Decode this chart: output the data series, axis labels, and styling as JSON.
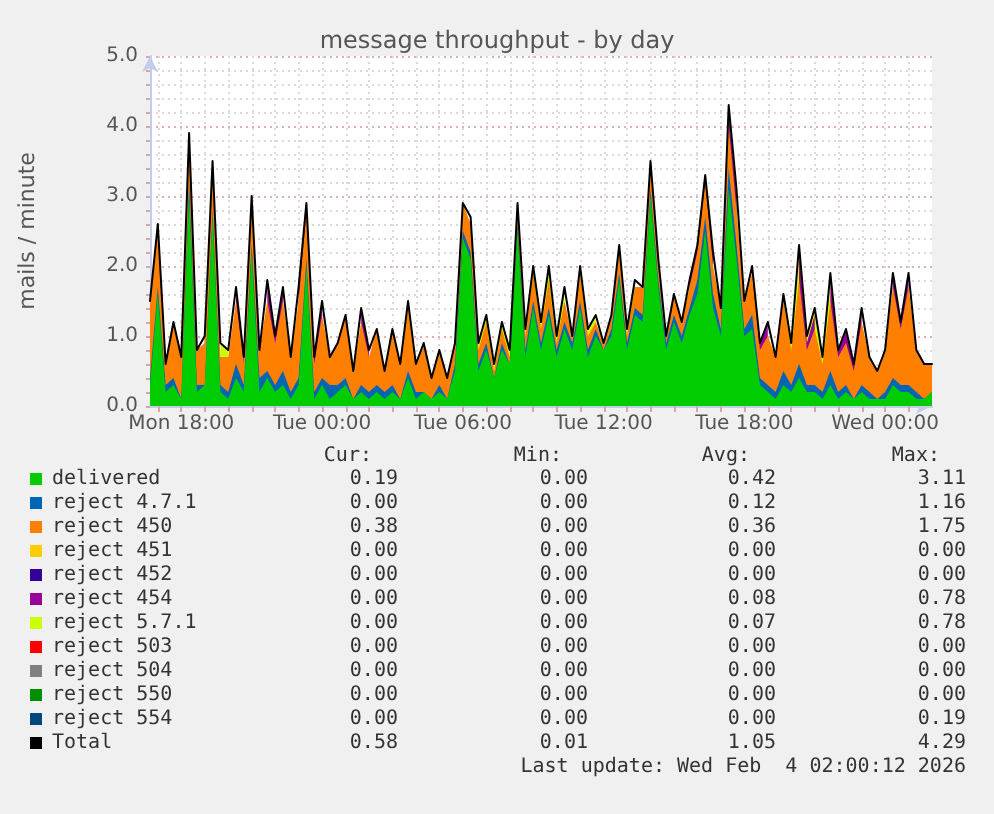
{
  "chart_data": {
    "type": "area",
    "stacked": true,
    "title": "message throughput - by day",
    "ylabel": "mails / minute",
    "x": [
      "2026-02-02T16:40",
      "2026-02-02T17:00",
      "2026-02-02T17:20",
      "2026-02-02T17:40",
      "2026-02-02T18:00",
      "2026-02-02T18:20",
      "2026-02-02T18:40",
      "2026-02-02T19:00",
      "2026-02-02T19:20",
      "2026-02-02T19:40",
      "2026-02-02T20:00",
      "2026-02-02T20:20",
      "2026-02-02T20:40",
      "2026-02-02T21:00",
      "2026-02-02T21:20",
      "2026-02-02T21:40",
      "2026-02-02T22:00",
      "2026-02-02T22:20",
      "2026-02-02T22:40",
      "2026-02-02T23:00",
      "2026-02-02T23:20",
      "2026-02-02T23:40",
      "2026-02-03T00:00",
      "2026-02-03T00:20",
      "2026-02-03T00:40",
      "2026-02-03T01:00",
      "2026-02-03T01:20",
      "2026-02-03T01:40",
      "2026-02-03T02:00",
      "2026-02-03T02:20",
      "2026-02-03T02:40",
      "2026-02-03T03:00",
      "2026-02-03T03:20",
      "2026-02-03T03:40",
      "2026-02-03T04:00",
      "2026-02-03T04:20",
      "2026-02-03T04:40",
      "2026-02-03T05:00",
      "2026-02-03T05:20",
      "2026-02-03T05:40",
      "2026-02-03T06:00",
      "2026-02-03T06:20",
      "2026-02-03T06:40",
      "2026-02-03T07:00",
      "2026-02-03T07:20",
      "2026-02-03T07:40",
      "2026-02-03T08:00",
      "2026-02-03T08:20",
      "2026-02-03T08:40",
      "2026-02-03T09:00",
      "2026-02-03T09:20",
      "2026-02-03T09:40",
      "2026-02-03T10:00",
      "2026-02-03T10:20",
      "2026-02-03T10:40",
      "2026-02-03T11:00",
      "2026-02-03T11:20",
      "2026-02-03T11:40",
      "2026-02-03T12:00",
      "2026-02-03T12:20",
      "2026-02-03T12:40",
      "2026-02-03T13:00",
      "2026-02-03T13:20",
      "2026-02-03T13:40",
      "2026-02-03T14:00",
      "2026-02-03T14:20",
      "2026-02-03T14:40",
      "2026-02-03T15:00",
      "2026-02-03T15:20",
      "2026-02-03T15:40",
      "2026-02-03T16:00",
      "2026-02-03T16:20",
      "2026-02-03T16:40",
      "2026-02-03T17:00",
      "2026-02-03T17:20",
      "2026-02-03T17:40",
      "2026-02-03T18:00",
      "2026-02-03T18:20",
      "2026-02-03T18:40",
      "2026-02-03T19:00",
      "2026-02-03T19:20",
      "2026-02-03T19:40",
      "2026-02-03T20:00",
      "2026-02-03T20:20",
      "2026-02-03T20:40",
      "2026-02-03T21:00",
      "2026-02-03T21:20",
      "2026-02-03T21:40",
      "2026-02-03T22:00",
      "2026-02-03T22:20",
      "2026-02-03T22:40",
      "2026-02-03T23:00",
      "2026-02-03T23:20",
      "2026-02-03T23:40",
      "2026-02-04T00:00",
      "2026-02-04T00:20",
      "2026-02-04T00:40",
      "2026-02-04T01:00",
      "2026-02-04T01:20",
      "2026-02-04T01:40",
      "2026-02-04T02:00"
    ],
    "series": [
      {
        "name": "delivered",
        "color": "#00cc00",
        "values": [
          0.3,
          1.6,
          0.2,
          0.3,
          0.1,
          3.0,
          0.2,
          0.3,
          2.7,
          0.2,
          0.1,
          0.4,
          0.2,
          2.2,
          0.2,
          0.4,
          0.2,
          0.3,
          0.1,
          0.3,
          2.0,
          0.1,
          0.3,
          0.1,
          0.2,
          0.3,
          0.1,
          0.2,
          0.1,
          0.2,
          0.1,
          0.2,
          0.1,
          0.4,
          0.1,
          0.2,
          0.1,
          0.2,
          0.1,
          0.5,
          2.4,
          2.1,
          0.5,
          0.8,
          0.4,
          0.8,
          0.6,
          2.5,
          0.7,
          1.4,
          0.8,
          1.3,
          0.7,
          1.1,
          0.8,
          1.4,
          0.7,
          1.0,
          0.8,
          1.0,
          1.8,
          0.8,
          1.3,
          1.2,
          3.0,
          1.7,
          0.8,
          1.2,
          0.9,
          1.3,
          1.6,
          2.5,
          1.4,
          1.0,
          3.1,
          2.1,
          1.0,
          1.1,
          0.3,
          0.2,
          0.1,
          0.3,
          0.2,
          0.4,
          0.2,
          0.2,
          0.1,
          0.3,
          0.1,
          0.2,
          0.1,
          0.2,
          0.1,
          0.1,
          0.1,
          0.3,
          0.2,
          0.2,
          0.1,
          0.1,
          0.2
        ]
      },
      {
        "name": "reject 4.7.1",
        "color": "#0066b3",
        "values": [
          0.1,
          0.1,
          0.1,
          0.1,
          0,
          0.2,
          0.1,
          0,
          0.1,
          0.1,
          0.1,
          0.2,
          0.1,
          0.1,
          0.2,
          0.1,
          0.1,
          0.2,
          0.1,
          0.1,
          0.1,
          0.1,
          0.1,
          0.2,
          0.1,
          0.1,
          0,
          0.1,
          0.1,
          0.1,
          0.1,
          0.1,
          0,
          0.1,
          0.1,
          0,
          0,
          0.1,
          0,
          0.1,
          0.1,
          0.1,
          0.1,
          0.1,
          0,
          0.1,
          0,
          0.1,
          0.1,
          0.1,
          0.1,
          0.1,
          0.1,
          0.1,
          0.1,
          0.1,
          0.1,
          0.1,
          0,
          0.1,
          0.1,
          0.1,
          0.1,
          0.1,
          0.1,
          0.1,
          0.1,
          0.1,
          0.1,
          0.1,
          0.2,
          0.2,
          0.2,
          0.1,
          0.3,
          0.2,
          0.1,
          0.2,
          0.1,
          0.1,
          0.1,
          0.2,
          0.1,
          0.2,
          0.1,
          0.1,
          0.1,
          0.2,
          0.1,
          0.1,
          0,
          0.1,
          0.1,
          0,
          0.1,
          0.1,
          0.1,
          0.1,
          0.1,
          0,
          0
        ]
      },
      {
        "name": "reject 450",
        "color": "#ff8000",
        "values": [
          1.1,
          0.9,
          0.3,
          0.8,
          0.6,
          0.7,
          0.5,
          0.6,
          0.6,
          0.4,
          0.5,
          0.9,
          0.3,
          0.7,
          0.4,
          1.0,
          0.6,
          1.0,
          0.5,
          1.1,
          0.7,
          0.4,
          0.9,
          0.4,
          0.6,
          0.9,
          0.4,
          0.9,
          0.5,
          0.8,
          0.3,
          0.8,
          0.5,
          1.0,
          0.4,
          0.7,
          0.3,
          0.5,
          0.3,
          0.3,
          0.4,
          0.4,
          0.2,
          0.3,
          0.1,
          0.2,
          0.1,
          0.2,
          0.2,
          0.4,
          0.2,
          0.4,
          0.1,
          0.3,
          0.1,
          0.4,
          0.2,
          0.1,
          0.1,
          0.2,
          0.3,
          0.1,
          0.3,
          0.4,
          0.3,
          0.2,
          0.1,
          0.3,
          0.2,
          0.3,
          0.4,
          0.5,
          0.4,
          0.3,
          0.6,
          0.5,
          0.4,
          0.6,
          0.4,
          0.7,
          0.5,
          1.0,
          0.5,
          1.2,
          0.5,
          0.8,
          0.4,
          1.0,
          0.5,
          0.6,
          0.4,
          0.9,
          0.5,
          0.4,
          0.6,
          1.3,
          0.8,
          1.4,
          0.6,
          0.5,
          0.4
        ]
      },
      {
        "name": "reject 451",
        "color": "#ffcc00",
        "values": [
          null,
          null,
          null,
          null,
          null,
          null,
          null,
          null,
          null,
          null,
          null,
          null,
          null,
          null,
          null,
          null,
          null,
          null,
          null,
          null,
          null,
          null,
          null,
          null,
          null,
          null,
          null,
          null,
          null,
          null,
          null,
          null,
          null,
          null,
          null,
          null,
          null,
          null,
          null,
          null,
          null,
          null,
          null,
          null,
          null,
          null,
          null,
          null,
          null,
          null,
          null,
          null,
          null,
          null,
          null,
          null,
          null,
          null,
          null,
          null,
          null,
          null,
          null,
          null,
          null,
          null,
          null,
          null,
          null,
          null,
          null,
          null,
          null,
          null,
          null,
          null,
          null,
          null,
          null,
          null,
          null,
          null,
          null,
          null,
          null,
          null,
          null,
          null,
          null,
          null,
          null,
          null,
          null,
          null,
          null,
          null,
          null,
          null,
          null,
          null,
          null
        ]
      },
      {
        "name": "reject 452",
        "color": "#330099",
        "values": [
          null,
          null,
          null,
          null,
          null,
          null,
          null,
          null,
          null,
          null,
          null,
          null,
          null,
          null,
          null,
          null,
          null,
          null,
          null,
          null,
          null,
          null,
          null,
          null,
          null,
          null,
          null,
          null,
          null,
          null,
          null,
          null,
          null,
          null,
          null,
          null,
          null,
          null,
          null,
          null,
          null,
          null,
          null,
          null,
          null,
          null,
          null,
          null,
          null,
          null,
          null,
          null,
          null,
          null,
          null,
          null,
          null,
          null,
          null,
          null,
          null,
          null,
          null,
          null,
          null,
          null,
          null,
          null,
          null,
          null,
          null,
          null,
          null,
          null,
          null,
          null,
          null,
          null,
          null,
          null,
          null,
          null,
          null,
          null,
          null,
          null,
          null,
          null,
          null,
          null,
          null,
          null,
          null,
          null,
          null,
          null,
          null,
          null,
          null,
          null,
          null
        ]
      },
      {
        "name": "reject 454",
        "color": "#990099",
        "values": [
          null,
          null,
          null,
          null,
          null,
          null,
          null,
          0.1,
          0.1,
          null,
          null,
          0.2,
          0.1,
          null,
          null,
          0.3,
          0.1,
          0.2,
          null,
          0.2,
          0.1,
          0.1,
          0.2,
          null,
          null,
          null,
          null,
          0.2,
          0.1,
          null,
          null,
          null,
          null,
          null,
          null,
          null,
          null,
          null,
          null,
          null,
          null,
          null,
          null,
          null,
          null,
          null,
          null,
          null,
          null,
          null,
          null,
          null,
          null,
          null,
          null,
          null,
          null,
          null,
          null,
          null,
          null,
          null,
          null,
          null,
          null,
          null,
          null,
          null,
          null,
          0.1,
          0.1,
          0.1,
          0.2,
          null,
          0.2,
          0.2,
          null,
          0.1,
          0.1,
          0.2,
          null,
          null,
          null,
          0.4,
          0.1,
          0.2,
          null,
          0.3,
          0.1,
          0.2,
          0.1,
          0.2,
          null,
          null,
          null,
          0.2,
          0.1,
          0.2,
          null,
          null,
          null
        ]
      },
      {
        "name": "reject 5.7.1",
        "color": "#ccff00",
        "values": [
          null,
          null,
          null,
          null,
          null,
          null,
          null,
          null,
          null,
          0.2,
          0.1,
          null,
          null,
          null,
          null,
          null,
          null,
          null,
          null,
          null,
          null,
          null,
          null,
          null,
          null,
          null,
          null,
          null,
          null,
          null,
          null,
          null,
          null,
          null,
          null,
          null,
          null,
          null,
          null,
          null,
          null,
          0.1,
          0.1,
          0.1,
          0.1,
          0.1,
          0.1,
          0.1,
          0.1,
          0.1,
          0.1,
          0.2,
          0.1,
          0.2,
          null,
          0.1,
          0.1,
          0.1,
          null,
          null,
          0.1,
          0.1,
          0.1,
          null,
          0.1,
          0.1,
          null,
          null,
          null,
          null,
          null,
          null,
          null,
          null,
          0.1,
          0.1,
          null,
          null,
          null,
          null,
          null,
          0.1,
          0.1,
          0.1,
          0.1,
          0.1,
          0.1,
          0.1,
          null,
          null,
          null,
          null,
          null,
          null,
          null,
          null,
          null,
          null,
          null,
          null,
          null
        ]
      },
      {
        "name": "reject 503",
        "color": "#ff0000",
        "values": [
          null,
          null,
          null,
          null,
          null,
          null,
          null,
          null,
          null,
          null,
          null,
          null,
          null,
          null,
          null,
          null,
          null,
          null,
          null,
          null,
          null,
          null,
          null,
          null,
          null,
          null,
          null,
          null,
          null,
          null,
          null,
          null,
          null,
          null,
          null,
          null,
          null,
          null,
          null,
          null,
          null,
          null,
          null,
          null,
          null,
          null,
          null,
          null,
          null,
          null,
          null,
          null,
          null,
          null,
          null,
          null,
          null,
          null,
          null,
          null,
          null,
          null,
          null,
          null,
          null,
          null,
          null,
          null,
          null,
          null,
          null,
          null,
          null,
          null,
          null,
          null,
          null,
          null,
          null,
          null,
          null,
          null,
          null,
          null,
          null,
          null,
          null,
          null,
          null,
          null,
          null,
          null,
          null,
          null,
          null,
          null,
          null,
          null,
          null,
          null,
          null
        ]
      },
      {
        "name": "reject 504",
        "color": "#808080",
        "values": [
          null,
          null,
          null,
          null,
          null,
          null,
          null,
          null,
          null,
          null,
          null,
          null,
          null,
          null,
          null,
          null,
          null,
          null,
          null,
          null,
          null,
          null,
          null,
          null,
          null,
          null,
          null,
          null,
          null,
          null,
          null,
          null,
          null,
          null,
          null,
          null,
          null,
          null,
          null,
          null,
          null,
          null,
          null,
          null,
          null,
          null,
          null,
          null,
          null,
          null,
          null,
          null,
          null,
          null,
          null,
          null,
          null,
          null,
          null,
          null,
          null,
          null,
          null,
          null,
          null,
          null,
          null,
          null,
          null,
          null,
          null,
          null,
          null,
          null,
          null,
          null,
          null,
          null,
          null,
          null,
          null,
          null,
          null,
          null,
          null,
          null,
          null,
          null,
          null,
          null,
          null,
          null,
          null,
          null,
          null,
          null,
          null,
          null,
          null,
          null,
          null
        ]
      },
      {
        "name": "reject 550",
        "color": "#008f00",
        "values": [
          null,
          null,
          null,
          null,
          null,
          null,
          null,
          null,
          null,
          null,
          null,
          null,
          null,
          null,
          null,
          null,
          null,
          null,
          null,
          null,
          null,
          null,
          null,
          null,
          null,
          null,
          null,
          null,
          null,
          null,
          null,
          null,
          null,
          null,
          null,
          null,
          null,
          null,
          null,
          null,
          null,
          null,
          null,
          null,
          null,
          null,
          null,
          null,
          null,
          null,
          null,
          null,
          null,
          null,
          null,
          null,
          null,
          null,
          null,
          null,
          null,
          null,
          null,
          null,
          null,
          null,
          null,
          null,
          null,
          null,
          null,
          null,
          null,
          null,
          null,
          null,
          null,
          null,
          null,
          null,
          null,
          null,
          null,
          null,
          null,
          null,
          null,
          null,
          null,
          null,
          null,
          null,
          null,
          null,
          null,
          null,
          null,
          null,
          null,
          null,
          null
        ]
      },
      {
        "name": "reject 554",
        "color": "#00487d",
        "values": [
          null,
          null,
          null,
          null,
          null,
          null,
          null,
          null,
          null,
          null,
          null,
          null,
          null,
          null,
          null,
          null,
          null,
          null,
          null,
          null,
          null,
          null,
          null,
          null,
          null,
          null,
          null,
          null,
          null,
          null,
          null,
          null,
          null,
          null,
          null,
          null,
          null,
          null,
          null,
          null,
          null,
          null,
          null,
          null,
          null,
          null,
          null,
          null,
          null,
          null,
          null,
          null,
          null,
          null,
          null,
          null,
          null,
          null,
          null,
          null,
          null,
          null,
          null,
          null,
          null,
          null,
          null,
          null,
          null,
          null,
          null,
          null,
          null,
          null,
          null,
          null,
          null,
          null,
          null,
          null,
          null,
          null,
          null,
          null,
          null,
          null,
          null,
          null,
          null,
          null,
          null,
          null,
          null,
          null,
          null,
          null,
          null,
          null,
          null,
          null,
          null
        ]
      },
      {
        "name": "Total",
        "type": "line",
        "color": "#000000",
        "values": [
          1.5,
          2.6,
          0.6,
          1.2,
          0.7,
          3.9,
          0.8,
          1.0,
          3.5,
          0.9,
          0.8,
          1.7,
          0.7,
          3.0,
          0.8,
          1.8,
          1.0,
          1.7,
          0.7,
          1.7,
          2.9,
          0.7,
          1.5,
          0.7,
          0.9,
          1.3,
          0.5,
          1.4,
          0.8,
          1.1,
          0.5,
          1.1,
          0.6,
          1.5,
          0.6,
          0.9,
          0.4,
          0.8,
          0.4,
          0.9,
          2.9,
          2.7,
          0.9,
          1.3,
          0.6,
          1.2,
          0.8,
          2.9,
          1.1,
          2.0,
          1.2,
          2.0,
          1.0,
          1.7,
          1.0,
          2.0,
          1.1,
          1.3,
          0.9,
          1.3,
          2.3,
          1.1,
          1.8,
          1.7,
          3.5,
          2.1,
          1.0,
          1.6,
          1.2,
          1.8,
          2.3,
          3.3,
          2.2,
          1.4,
          4.3,
          3.1,
          1.5,
          2.0,
          0.9,
          1.2,
          0.7,
          1.6,
          0.9,
          2.3,
          1.0,
          1.4,
          0.7,
          1.9,
          0.8,
          1.1,
          0.6,
          1.4,
          0.7,
          0.5,
          0.8,
          1.9,
          1.2,
          1.9,
          0.8,
          0.6,
          0.6
        ]
      }
    ],
    "xlim": [
      "2026-02-02T16:40",
      "2026-02-04T02:00"
    ],
    "xticks": [
      {
        "value": "2026-02-02T17:00",
        "label": null
      },
      {
        "value": "2026-02-02T18:00",
        "label": "Mon 18:00"
      },
      {
        "value": "2026-02-02T19:00",
        "label": null
      },
      {
        "value": "2026-02-02T20:00",
        "label": null
      },
      {
        "value": "2026-02-02T21:00",
        "label": null
      },
      {
        "value": "2026-02-02T22:00",
        "label": null
      },
      {
        "value": "2026-02-02T23:00",
        "label": null
      },
      {
        "value": "2026-02-03T00:00",
        "label": "Tue 00:00"
      },
      {
        "value": "2026-02-03T01:00",
        "label": null
      },
      {
        "value": "2026-02-03T02:00",
        "label": null
      },
      {
        "value": "2026-02-03T03:00",
        "label": null
      },
      {
        "value": "2026-02-03T04:00",
        "label": null
      },
      {
        "value": "2026-02-03T05:00",
        "label": null
      },
      {
        "value": "2026-02-03T06:00",
        "label": "Tue 06:00"
      },
      {
        "value": "2026-02-03T07:00",
        "label": null
      },
      {
        "value": "2026-02-03T08:00",
        "label": null
      },
      {
        "value": "2026-02-03T09:00",
        "label": null
      },
      {
        "value": "2026-02-03T10:00",
        "label": null
      },
      {
        "value": "2026-02-03T11:00",
        "label": null
      },
      {
        "value": "2026-02-03T12:00",
        "label": "Tue 12:00"
      },
      {
        "value": "2026-02-03T13:00",
        "label": null
      },
      {
        "value": "2026-02-03T14:00",
        "label": null
      },
      {
        "value": "2026-02-03T15:00",
        "label": null
      },
      {
        "value": "2026-02-03T16:00",
        "label": null
      },
      {
        "value": "2026-02-03T17:00",
        "label": null
      },
      {
        "value": "2026-02-03T18:00",
        "label": "Tue 18:00"
      },
      {
        "value": "2026-02-03T19:00",
        "label": null
      },
      {
        "value": "2026-02-03T20:00",
        "label": null
      },
      {
        "value": "2026-02-03T21:00",
        "label": null
      },
      {
        "value": "2026-02-03T22:00",
        "label": null
      },
      {
        "value": "2026-02-03T23:00",
        "label": null
      },
      {
        "value": "2026-02-04T00:00",
        "label": "Wed 00:00"
      },
      {
        "value": "2026-02-04T01:00",
        "label": null
      }
    ],
    "ylim": [
      0,
      5
    ],
    "yticks": [
      {
        "value": 0,
        "label": "0.0"
      },
      {
        "value": 0.2,
        "label": null
      },
      {
        "value": 0.4,
        "label": null
      },
      {
        "value": 0.6,
        "label": null
      },
      {
        "value": 0.8,
        "label": null
      },
      {
        "value": 1,
        "label": "1.0"
      },
      {
        "value": 1.2,
        "label": null
      },
      {
        "value": 1.4,
        "label": null
      },
      {
        "value": 1.6,
        "label": null
      },
      {
        "value": 1.8,
        "label": null
      },
      {
        "value": 2,
        "label": "2.0"
      },
      {
        "value": 2.2,
        "label": null
      },
      {
        "value": 2.4,
        "label": null
      },
      {
        "value": 2.6,
        "label": null
      },
      {
        "value": 2.8,
        "label": null
      },
      {
        "value": 3,
        "label": "3.0"
      },
      {
        "value": 3.2,
        "label": null
      },
      {
        "value": 3.4,
        "label": null
      },
      {
        "value": 3.6,
        "label": null
      },
      {
        "value": 3.8,
        "label": null
      },
      {
        "value": 4,
        "label": "4.0"
      },
      {
        "value": 4.2,
        "label": null
      },
      {
        "value": 4.4,
        "label": null
      },
      {
        "value": 4.6,
        "label": null
      },
      {
        "value": 4.8,
        "label": null
      },
      {
        "value": 5,
        "label": "5.0"
      }
    ],
    "grid": true,
    "legend": "bottom",
    "marker": "none",
    "annotations": [
      "Cur:",
      "Min:",
      "Avg:",
      "Max:",
      "0.19",
      "0.00",
      "0.42",
      "3.11",
      "0.00",
      "0.00",
      "0.12",
      "1.16",
      "0.38",
      "0.00",
      "0.36",
      "1.75",
      "0.00",
      "0.00",
      "0.00",
      "0.00",
      "0.00",
      "0.00",
      "0.00",
      "0.00",
      "0.00",
      "0.00",
      "0.08",
      "0.78",
      "0.00",
      "0.00",
      "0.07",
      "0.78",
      "0.00",
      "0.00",
      "0.00",
      "0.00",
      "0.00",
      "0.00",
      "0.00",
      "0.00",
      "0.00",
      "0.00",
      "0.00",
      "0.00",
      "0.00",
      "0.00",
      "0.00",
      "0.19",
      "0.58",
      "0.01",
      "1.05",
      "4.29",
      "Last update: Wed Feb  4 02:00:12 2026"
    ]
  }
}
